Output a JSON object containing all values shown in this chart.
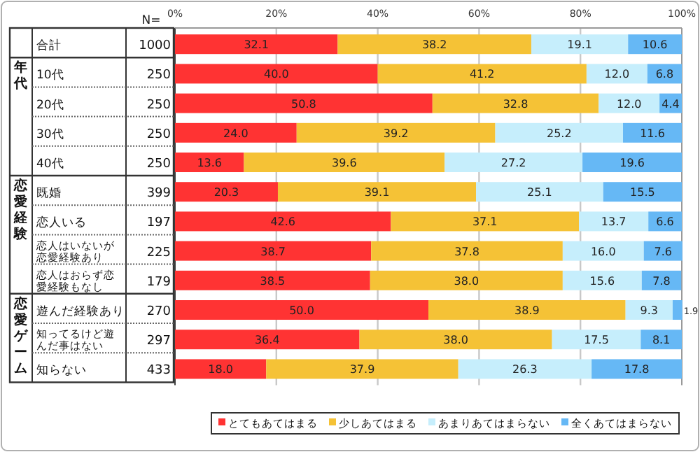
{
  "chart_data": {
    "type": "bar",
    "orientation": "horizontal",
    "stacked": true,
    "grid": "x",
    "legend": "bottom",
    "categories": [
      "合計",
      "10代",
      "20代",
      "30代",
      "40代",
      "既婚",
      "恋人いる",
      "恋人はいないが恋愛経験あり",
      "恋人はおらず恋愛経験もなし",
      "遊んだ経験あり",
      "知ってるけど遊んだ事はない",
      "知らない"
    ],
    "series": [
      {
        "name": "とてもあてはまる",
        "color": "#ff3333",
        "values": [
          32.1,
          40.0,
          50.8,
          24.0,
          13.6,
          20.3,
          42.6,
          38.7,
          38.5,
          50.0,
          36.4,
          18.0
        ],
        "value_labels": [
          "32.1",
          "40.0",
          "50.8",
          "24.0",
          "13.6",
          "20.3",
          "42.6",
          "38.7",
          "38.5",
          "50.0",
          "36.4",
          "18.0"
        ]
      },
      {
        "name": "少しあてはまる",
        "color": "#f5c236",
        "values": [
          38.2,
          41.2,
          32.8,
          39.2,
          39.6,
          39.1,
          37.1,
          37.8,
          38.0,
          38.9,
          38.0,
          37.9
        ],
        "value_labels": [
          "38.2",
          "41.2",
          "32.8",
          "39.2",
          "39.6",
          "39.1",
          "37.1",
          "37.8",
          "38.0",
          "38.9",
          "38.0",
          "37.9"
        ]
      },
      {
        "name": "あまりあてはまらない",
        "color": "#c6eefc",
        "values": [
          19.1,
          12.0,
          12.0,
          25.2,
          27.2,
          25.1,
          13.7,
          16.0,
          15.6,
          9.3,
          17.5,
          26.3
        ],
        "value_labels": [
          "19.1",
          "12.0",
          "12.0",
          "25.2",
          "27.2",
          "25.1",
          "13.7",
          "16.0",
          "15.6",
          "9.3",
          "17.5",
          "26.3"
        ]
      },
      {
        "name": "全くあてはまらない",
        "color": "#66b8f5",
        "values": [
          10.6,
          6.8,
          4.4,
          11.6,
          19.6,
          15.5,
          6.6,
          7.6,
          7.8,
          1.9,
          8.1,
          17.8
        ],
        "value_labels": [
          "10.6",
          "6.8",
          "4.4",
          "11.6",
          "19.6",
          "15.5",
          "6.6",
          "7.6",
          "7.8",
          "1.9",
          "8.1",
          "17.8"
        ]
      }
    ],
    "xlim": [
      0,
      100
    ],
    "xticks": [
      {
        "value": 0,
        "label": "0%"
      },
      {
        "value": 20,
        "label": "20%"
      },
      {
        "value": 40,
        "label": "40%"
      },
      {
        "value": 60,
        "label": "60%"
      },
      {
        "value": 80,
        "label": "80%"
      },
      {
        "value": 100,
        "label": "100%"
      }
    ],
    "annotations": [
      "N=",
      "年代",
      "恋愛経験",
      "恋愛ゲーム",
      "1000",
      "250",
      "250",
      "250",
      "250",
      "399",
      "197",
      "225",
      "179",
      "270",
      "297",
      "433"
    ]
  }
}
